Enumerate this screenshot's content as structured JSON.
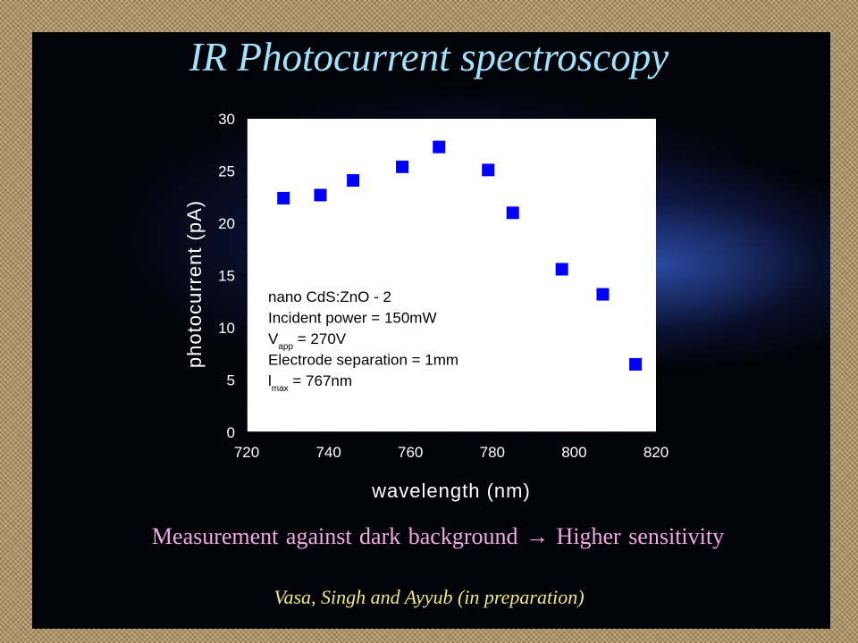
{
  "slide": {
    "title": "IR Photocurrent spectroscopy",
    "caption_left": "Measurement against dark background",
    "caption_arrow": "→",
    "caption_right": "Higher sensitivity",
    "credit": "Vasa, Singh and Ayyub (in preparation)"
  },
  "chart_data": {
    "type": "scatter",
    "title": "",
    "xlabel": "wavelength (nm)",
    "ylabel": "photocurrent (pA)",
    "xlim": [
      720,
      820
    ],
    "ylim": [
      0,
      30
    ],
    "xticks": [
      720,
      740,
      760,
      780,
      800,
      820
    ],
    "yticks": [
      0,
      5,
      10,
      15,
      20,
      25,
      30
    ],
    "grid": false,
    "marker_color": "#0000ff",
    "x": [
      729,
      738,
      746,
      758,
      767,
      779,
      785,
      797,
      807,
      815
    ],
    "y": [
      22.4,
      22.7,
      24.1,
      25.4,
      27.3,
      25.1,
      21.0,
      15.6,
      13.2,
      6.5
    ],
    "annotation_lines": [
      {
        "main": "nano CdS:ZnO - 2",
        "sub": "",
        "rest": ""
      },
      {
        "main": "Incident power = 150mW",
        "sub": "",
        "rest": ""
      },
      {
        "main": "V",
        "sub": "app",
        "rest": " = 270V"
      },
      {
        "main": "Electrode separation = 1mm",
        "sub": "",
        "rest": ""
      },
      {
        "main": "l",
        "sub": "max",
        "rest": " = 767nm"
      }
    ]
  }
}
